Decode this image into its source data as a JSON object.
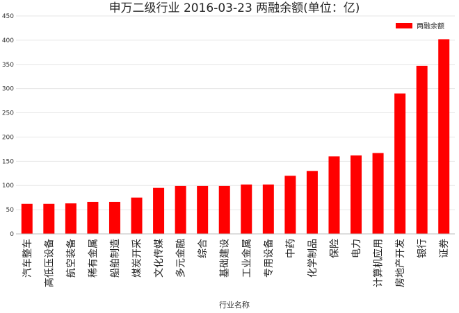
{
  "chart_data": {
    "type": "bar",
    "title": "申万二级行业 2016-03-23 两融余额(单位：亿)",
    "xlabel": "行业名称",
    "ylabel": "",
    "ylim": [
      0,
      450
    ],
    "yticks": [
      0,
      50,
      100,
      150,
      200,
      250,
      300,
      350,
      400,
      450
    ],
    "grid": true,
    "legend": "top-right",
    "series": [
      {
        "name": "两融余额",
        "color": "#ff0000",
        "values": [
          62,
          62,
          63,
          66,
          66,
          75,
          95,
          99,
          99,
          99,
          102,
          102,
          120,
          130,
          160,
          162,
          167,
          290,
          347,
          402
        ]
      }
    ],
    "categories": [
      "汽车整车",
      "高低压设备",
      "航空装备",
      "稀有金属",
      "船舶制造",
      "煤炭开采",
      "文化传媒",
      "多元金融",
      "综合",
      "基础建设",
      "工业金属",
      "专用设备",
      "中药",
      "化学制品",
      "保险",
      "电力",
      "计算机应用",
      "房地产开发",
      "银行",
      "证券"
    ]
  }
}
